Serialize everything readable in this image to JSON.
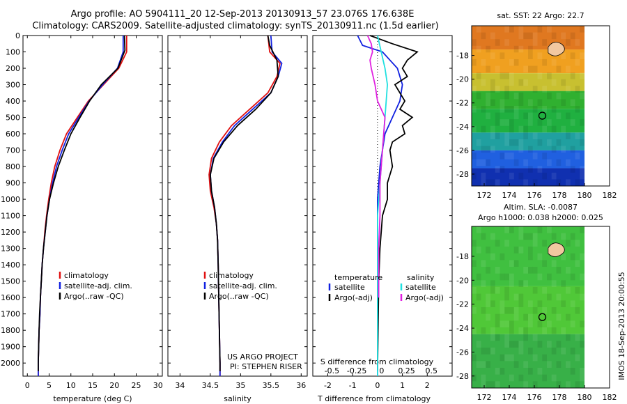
{
  "title_lines": [
    "Argo profile: AO 5904111_20 12-Sep-2013 20130913_57 23.076S 176.638E",
    "Climatology: CARS2009. Satellite-adjusted climatology: synTS_20130911.nc (1.5d earlier)"
  ],
  "credits": [
    "US ARGO PROJECT",
    "PI: STEPHEN RISER"
  ],
  "side_stamp": "IMOS 18-Sep-2013 20:00:55",
  "colors": {
    "climatology": "#e01010",
    "satellite": "#1020e0",
    "argo": "#000000",
    "sat_s": "#20e0e0",
    "argo_s": "#e020e0"
  },
  "chart_data": [
    {
      "type": "line",
      "name": "temperature",
      "xlabel": "temperature (deg C)",
      "xlim": [
        -1,
        31
      ],
      "ylim": [
        0,
        2080
      ],
      "xticks": [
        0,
        5,
        10,
        15,
        20,
        25,
        30
      ],
      "yticks": [
        0,
        100,
        200,
        300,
        400,
        500,
        600,
        700,
        800,
        900,
        1000,
        1100,
        1200,
        1300,
        1400,
        1500,
        1600,
        1700,
        1800,
        1900,
        2000
      ],
      "legend": [
        "climatology",
        "satellite-adj. clim.",
        "Argo(..raw -QC)"
      ],
      "series": [
        {
          "name": "climatology",
          "color": "#e01010",
          "points": [
            [
              22.8,
              0
            ],
            [
              22.8,
              100
            ],
            [
              21.0,
              200
            ],
            [
              17.5,
              300
            ],
            [
              14.0,
              400
            ],
            [
              11.5,
              500
            ],
            [
              9.0,
              600
            ],
            [
              7.5,
              700
            ],
            [
              6.3,
              800
            ],
            [
              5.5,
              900
            ],
            [
              4.9,
              1000
            ],
            [
              4.4,
              1100
            ],
            [
              4.0,
              1200
            ],
            [
              3.7,
              1300
            ],
            [
              3.4,
              1400
            ],
            [
              3.2,
              1500
            ],
            [
              3.0,
              1600
            ],
            [
              2.9,
              1700
            ],
            [
              2.7,
              1800
            ],
            [
              2.6,
              1900
            ],
            [
              2.5,
              2000
            ],
            [
              2.5,
              2080
            ]
          ]
        },
        {
          "name": "satellite-adj. clim.",
          "color": "#1020e0",
          "points": [
            [
              22.0,
              0
            ],
            [
              22.0,
              100
            ],
            [
              20.7,
              200
            ],
            [
              17.3,
              300
            ],
            [
              14.2,
              400
            ],
            [
              11.8,
              500
            ],
            [
              9.5,
              600
            ],
            [
              8.0,
              700
            ],
            [
              6.7,
              800
            ],
            [
              5.8,
              900
            ],
            [
              5.1,
              1000
            ],
            [
              4.5,
              1100
            ],
            [
              4.1,
              1200
            ],
            [
              3.7,
              1300
            ],
            [
              3.4,
              1400
            ],
            [
              3.2,
              1500
            ],
            [
              3.0,
              1600
            ],
            [
              2.9,
              1700
            ],
            [
              2.7,
              1800
            ],
            [
              2.6,
              1900
            ],
            [
              2.5,
              2000
            ],
            [
              2.5,
              2080
            ]
          ]
        },
        {
          "name": "Argo(..raw -QC)",
          "color": "#000000",
          "points": [
            [
              22.3,
              0
            ],
            [
              22.4,
              90
            ],
            [
              20.8,
              200
            ],
            [
              17.0,
              300
            ],
            [
              14.3,
              400
            ],
            [
              12.1,
              500
            ],
            [
              10.0,
              600
            ],
            [
              8.5,
              700
            ],
            [
              7.1,
              800
            ],
            [
              6.0,
              900
            ],
            [
              5.1,
              1000
            ],
            [
              4.5,
              1100
            ],
            [
              4.1,
              1200
            ],
            [
              3.7,
              1300
            ],
            [
              3.4,
              1400
            ],
            [
              3.2,
              1500
            ],
            [
              3.0,
              1600
            ],
            [
              2.8,
              1700
            ],
            [
              2.7,
              1800
            ],
            [
              2.6,
              1900
            ],
            [
              2.5,
              2000
            ],
            [
              2.5,
              2050
            ]
          ]
        }
      ]
    },
    {
      "type": "line",
      "name": "salinity",
      "xlabel": "salinity",
      "xlim": [
        33.8,
        36.1
      ],
      "ylim": [
        0,
        2080
      ],
      "xticks": [
        34,
        34.5,
        35,
        35.5,
        36
      ],
      "legend": [
        "climatology",
        "satellite-adj. clim.",
        "Argo(..raw -QC)"
      ],
      "series": [
        {
          "name": "climatology",
          "color": "#e01010",
          "points": [
            [
              35.45,
              0
            ],
            [
              35.48,
              100
            ],
            [
              35.65,
              170
            ],
            [
              35.6,
              250
            ],
            [
              35.45,
              350
            ],
            [
              35.15,
              450
            ],
            [
              34.85,
              550
            ],
            [
              34.65,
              650
            ],
            [
              34.52,
              750
            ],
            [
              34.48,
              850
            ],
            [
              34.5,
              950
            ],
            [
              34.56,
              1050
            ],
            [
              34.6,
              1150
            ],
            [
              34.62,
              1250
            ],
            [
              34.63,
              1400
            ],
            [
              34.64,
              1600
            ],
            [
              34.65,
              1800
            ],
            [
              34.66,
              2000
            ],
            [
              34.66,
              2080
            ]
          ]
        },
        {
          "name": "satellite-adj. clim.",
          "color": "#1020e0",
          "points": [
            [
              35.5,
              0
            ],
            [
              35.52,
              100
            ],
            [
              35.68,
              170
            ],
            [
              35.62,
              250
            ],
            [
              35.5,
              350
            ],
            [
              35.2,
              450
            ],
            [
              34.9,
              550
            ],
            [
              34.7,
              650
            ],
            [
              34.55,
              750
            ],
            [
              34.5,
              850
            ],
            [
              34.52,
              950
            ],
            [
              34.57,
              1050
            ],
            [
              34.6,
              1150
            ],
            [
              34.62,
              1250
            ],
            [
              34.63,
              1400
            ],
            [
              34.64,
              1600
            ],
            [
              34.65,
              1800
            ],
            [
              34.66,
              2000
            ],
            [
              34.66,
              2080
            ]
          ]
        },
        {
          "name": "Argo(..raw -QC)",
          "color": "#000000",
          "points": [
            [
              35.45,
              0
            ],
            [
              35.48,
              60
            ],
            [
              35.6,
              150
            ],
            [
              35.62,
              250
            ],
            [
              35.5,
              350
            ],
            [
              35.25,
              450
            ],
            [
              34.95,
              550
            ],
            [
              34.72,
              650
            ],
            [
              34.56,
              750
            ],
            [
              34.5,
              850
            ],
            [
              34.52,
              950
            ],
            [
              34.57,
              1050
            ],
            [
              34.6,
              1150
            ],
            [
              34.62,
              1250
            ],
            [
              34.63,
              1400
            ],
            [
              34.64,
              1600
            ],
            [
              34.65,
              1800
            ],
            [
              34.66,
              2000
            ],
            [
              34.66,
              2050
            ]
          ]
        }
      ]
    },
    {
      "type": "line",
      "name": "differences",
      "xlabel": "T difference from climatology",
      "xlabel_top": "S difference from climatology",
      "xlim": [
        -2.6,
        3.0
      ],
      "ylim": [
        0,
        2080
      ],
      "xticks": [
        -2,
        -1,
        0,
        1,
        2
      ],
      "sticks": [
        [
          "-0.5",
          -2
        ],
        [
          "-0.25",
          -1
        ],
        [
          "0",
          0
        ],
        [
          "0.25",
          1
        ],
        [
          "0.5",
          2
        ]
      ],
      "legend_t": {
        "head": "temperature",
        "items": [
          "satellite",
          "Argo(-adj)"
        ]
      },
      "legend_s": {
        "head": "salinity",
        "items": [
          "satellite",
          "Argo(-adj)"
        ]
      },
      "series": [
        {
          "name": "satellite",
          "color": "#1020e0",
          "points": [
            [
              -0.8,
              0
            ],
            [
              -0.6,
              60
            ],
            [
              0.2,
              100
            ],
            [
              0.5,
              150
            ],
            [
              0.8,
              200
            ],
            [
              1.0,
              300
            ],
            [
              0.9,
              400
            ],
            [
              0.6,
              500
            ],
            [
              0.3,
              600
            ],
            [
              0.1,
              800
            ],
            [
              0.0,
              1000
            ],
            [
              0.0,
              2080
            ]
          ]
        },
        {
          "name": "Argo(-adj)",
          "color": "#000000",
          "points": [
            [
              -0.3,
              0
            ],
            [
              0.6,
              50
            ],
            [
              1.6,
              100
            ],
            [
              1.2,
              150
            ],
            [
              1.0,
              200
            ],
            [
              1.2,
              250
            ],
            [
              0.7,
              300
            ],
            [
              0.9,
              350
            ],
            [
              1.1,
              400
            ],
            [
              0.9,
              450
            ],
            [
              1.4,
              500
            ],
            [
              1.0,
              550
            ],
            [
              1.1,
              600
            ],
            [
              0.6,
              650
            ],
            [
              0.5,
              700
            ],
            [
              0.6,
              800
            ],
            [
              0.4,
              900
            ],
            [
              0.4,
              1000
            ],
            [
              0.2,
              1100
            ],
            [
              0.1,
              1300
            ],
            [
              0.05,
              1500
            ],
            [
              0.0,
              2050
            ]
          ]
        },
        {
          "name": "sat S",
          "color": "#20e0e0",
          "points": [
            [
              0.0,
              0
            ],
            [
              0.15,
              100
            ],
            [
              0.3,
              200
            ],
            [
              0.4,
              300
            ],
            [
              0.3,
              500
            ],
            [
              0.2,
              700
            ],
            [
              0.1,
              900
            ],
            [
              0.0,
              1100
            ],
            [
              0.0,
              2080
            ]
          ]
        },
        {
          "name": "Argo S",
          "color": "#e020e0",
          "points": [
            [
              -0.4,
              0
            ],
            [
              -0.25,
              50
            ],
            [
              -0.2,
              100
            ],
            [
              -0.3,
              150
            ],
            [
              -0.25,
              200
            ],
            [
              -0.1,
              300
            ],
            [
              0.0,
              400
            ],
            [
              0.3,
              500
            ],
            [
              0.2,
              700
            ],
            [
              0.1,
              900
            ],
            [
              0.1,
              1100
            ],
            [
              0.05,
              1300
            ],
            [
              0.05,
              1600
            ]
          ]
        }
      ]
    },
    {
      "type": "heatmap",
      "name": "sst_map",
      "title": "sat. SST: 22 Argo: 22.7",
      "xlim": [
        171,
        182
      ],
      "ylim": [
        -29,
        -15.5
      ],
      "xticks": [
        172,
        174,
        176,
        178,
        180,
        182
      ],
      "yticks": [
        -18,
        -20,
        -22,
        -24,
        -26,
        -28
      ],
      "marker": [
        176.638,
        -23.076
      ],
      "bands": [
        {
          "from": -15.5,
          "to": -17.5,
          "color": "#e07820"
        },
        {
          "from": -17.5,
          "to": -19.5,
          "color": "#f0a020"
        },
        {
          "from": -19.5,
          "to": -21.0,
          "color": "#c8c030"
        },
        {
          "from": -21.0,
          "to": -22.5,
          "color": "#30b030"
        },
        {
          "from": -22.5,
          "to": -24.5,
          "color": "#20b040"
        },
        {
          "from": -24.5,
          "to": -26.0,
          "color": "#20a0a0"
        },
        {
          "from": -26.0,
          "to": -27.5,
          "color": "#2060e0"
        },
        {
          "from": -27.5,
          "to": -29.0,
          "color": "#1030b0"
        }
      ]
    },
    {
      "type": "heatmap",
      "name": "sla_map",
      "title_lines": [
        "Altim. SLA: -0.0087",
        "Argo h1000: 0.038 h2000: 0.025"
      ],
      "xlim": [
        171,
        182
      ],
      "ylim": [
        -29,
        -15.5
      ],
      "xticks": [
        172,
        174,
        176,
        178,
        180,
        182
      ],
      "yticks": [
        -18,
        -20,
        -22,
        -24,
        -26,
        -28
      ],
      "marker": [
        176.638,
        -23.076
      ],
      "bands": [
        {
          "from": -15.5,
          "to": -20.5,
          "color": "#40c040"
        },
        {
          "from": -20.5,
          "to": -24.5,
          "color": "#50c838"
        },
        {
          "from": -24.5,
          "to": -29.0,
          "color": "#38b048"
        }
      ]
    }
  ]
}
